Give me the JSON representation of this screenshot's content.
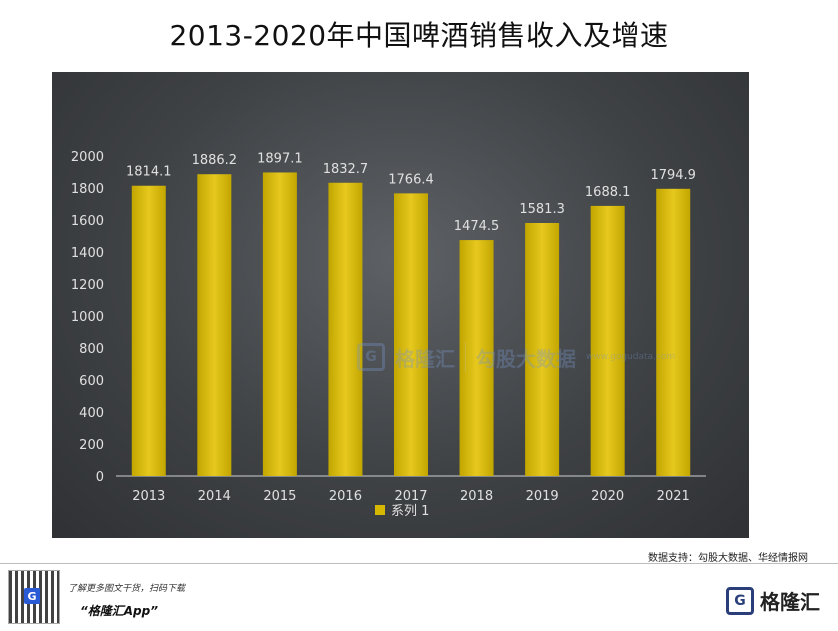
{
  "header": {
    "title": "2013-2020年中国啤酒销售收入及增速"
  },
  "chart_data": {
    "type": "bar",
    "title": "2013-2020年中国啤酒销售收入及增速",
    "categories": [
      "2013",
      "2014",
      "2015",
      "2016",
      "2017",
      "2018",
      "2019",
      "2020",
      "2021"
    ],
    "series": [
      {
        "name": "系列 1",
        "values": [
          1814.1,
          1886.2,
          1897.1,
          1832.7,
          1766.4,
          1474.5,
          1581.3,
          1688.1,
          1794.9
        ],
        "labels": [
          "1814.1",
          "1886.2",
          "1897.1",
          "1832.7",
          "1766.4",
          "1474.5",
          "1581.3",
          "1688.1",
          "1794.9"
        ]
      }
    ],
    "y_ticks": [
      "0",
      "200",
      "400",
      "600",
      "800",
      "1000",
      "1200",
      "1400",
      "1600",
      "1800",
      "2000"
    ],
    "ylim": [
      0,
      2000
    ],
    "xlabel": "",
    "ylabel": "",
    "legend": "bottom",
    "grid": false,
    "colors": {
      "bar": "#d6b800",
      "bar_light": "#e6c81e",
      "bar_dark": "#c2a600",
      "axis": "#cfcfcf",
      "text": "#e0e0e0"
    }
  },
  "watermark": {
    "logo": "G",
    "brand": "格隆汇",
    "partner": "勾股大数据",
    "partner_url": "www.gogudata.com"
  },
  "footer": {
    "source": "数据支持：勾股大数据、华经情报网",
    "promo_line": "了解更多图文干货，扫码下载",
    "app_name": "“格隆汇App”",
    "brand": "格隆汇",
    "logo_letter": "G",
    "qr_letter": "G"
  }
}
